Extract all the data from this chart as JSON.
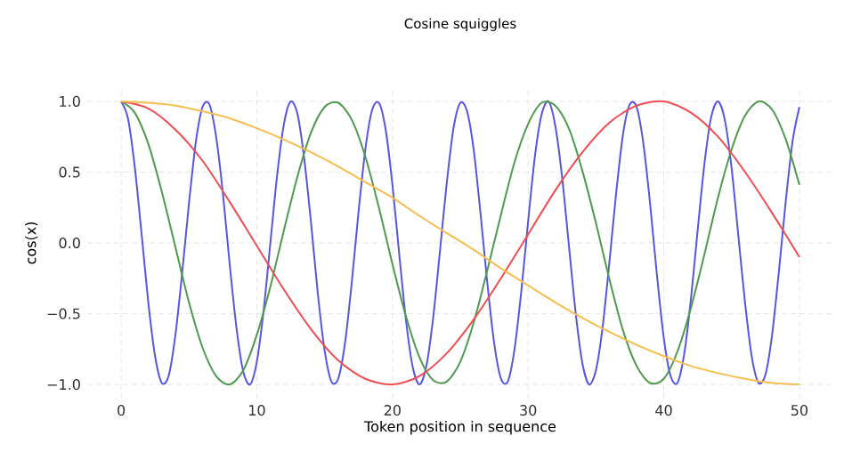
{
  "chart_data": {
    "type": "line",
    "title": "Cosine squiggles",
    "xlabel": "Token position in sequence",
    "ylabel": "cos(x)",
    "xlim": [
      -2.5,
      52.5
    ],
    "ylim": [
      -1.1,
      1.1
    ],
    "xticks": [
      0,
      10,
      20,
      30,
      40,
      50
    ],
    "yticks": [
      {
        "value": -1,
        "label": "−1.0"
      },
      {
        "value": -0.5,
        "label": "−0.5"
      },
      {
        "value": 0,
        "label": "0.0"
      },
      {
        "value": 0.5,
        "label": "0.5"
      },
      {
        "value": 1,
        "label": "1.0"
      }
    ],
    "grid": true,
    "series": [
      {
        "color": "#5656e0",
        "x": [
          0,
          0.5,
          1,
          1.5,
          2,
          2.5,
          3,
          3.5,
          4,
          4.5,
          5,
          5.5,
          6,
          6.5,
          7,
          7.5,
          8,
          8.5,
          9,
          9.5,
          10,
          10.5,
          11,
          11.5,
          12,
          12.5,
          13,
          13.5,
          14,
          14.5,
          15,
          15.5,
          16,
          16.5,
          17,
          17.5,
          18,
          18.5,
          19,
          19.5,
          20,
          20.5,
          21,
          21.5,
          22,
          22.5,
          23,
          23.5,
          24,
          24.5,
          25,
          25.5,
          26,
          26.5,
          27,
          27.5,
          28,
          28.5,
          29,
          29.5,
          30,
          30.5,
          31,
          31.5,
          32,
          32.5,
          33,
          33.5,
          34,
          34.5,
          35,
          35.5,
          36,
          36.5,
          37,
          37.5,
          38,
          38.5,
          39,
          39.5,
          40,
          40.5,
          41,
          41.5,
          42,
          42.5,
          43,
          43.5,
          44,
          44.5,
          45,
          45.5,
          46,
          46.5,
          47,
          47.5,
          48,
          48.5,
          49,
          49.5,
          50
        ],
        "values": [
          1.0,
          0.88,
          0.54,
          0.07,
          -0.42,
          -0.8,
          -0.99,
          -0.94,
          -0.65,
          -0.21,
          0.28,
          0.71,
          0.96,
          0.98,
          0.75,
          0.35,
          -0.15,
          -0.6,
          -0.91,
          -1.0,
          -0.84,
          -0.48,
          0.0,
          0.48,
          0.84,
          1.0,
          0.91,
          0.59,
          0.14,
          -0.36,
          -0.76,
          -0.98,
          -0.96,
          -0.71,
          -0.28,
          0.22,
          0.66,
          0.94,
          0.99,
          0.8,
          0.41,
          -0.08,
          -0.55,
          -0.88,
          -1.0,
          -0.87,
          -0.53,
          -0.06,
          0.42,
          0.81,
          0.99,
          0.93,
          0.65,
          0.2,
          -0.29,
          -0.71,
          -0.96,
          -0.98,
          -0.75,
          -0.34,
          0.15,
          0.61,
          0.91,
          1.0,
          0.83,
          0.47,
          -0.01,
          -0.49,
          -0.85,
          -1.0,
          -0.9,
          -0.59,
          -0.13,
          0.36,
          0.77,
          0.98,
          0.96,
          0.7,
          0.27,
          -0.23,
          -0.67,
          -0.94,
          -0.99,
          -0.79,
          -0.4,
          0.09,
          0.56,
          0.89,
          1.0,
          0.87,
          0.53,
          0.05,
          -0.43,
          -0.81,
          -0.99,
          -0.93,
          -0.64,
          -0.19,
          0.3,
          0.72,
          0.96
        ]
      },
      {
        "color": "#4e9a4e",
        "x": [
          0,
          1,
          2,
          3,
          4,
          5,
          6,
          7,
          8,
          9,
          10,
          11,
          12,
          13,
          14,
          15,
          16,
          17,
          18,
          19,
          20,
          21,
          22,
          23,
          24,
          25,
          26,
          27,
          28,
          29,
          30,
          31,
          32,
          33,
          34,
          35,
          36,
          37,
          38,
          39,
          40,
          41,
          42,
          43,
          44,
          45,
          46,
          47,
          48,
          49,
          50
        ],
        "values": [
          1.0,
          0.92,
          0.7,
          0.36,
          -0.03,
          -0.42,
          -0.74,
          -0.94,
          -1.0,
          -0.9,
          -0.65,
          -0.31,
          0.09,
          0.47,
          0.78,
          0.96,
          0.99,
          0.87,
          0.61,
          0.25,
          -0.15,
          -0.52,
          -0.81,
          -0.97,
          -0.98,
          -0.84,
          -0.56,
          -0.19,
          0.2,
          0.57,
          0.84,
          0.99,
          0.97,
          0.81,
          0.51,
          0.14,
          -0.26,
          -0.62,
          -0.87,
          -0.99,
          -0.96,
          -0.77,
          -0.46,
          -0.08,
          0.32,
          0.66,
          0.9,
          1.0,
          0.94,
          0.73,
          0.41
        ]
      },
      {
        "color": "#ee4e52",
        "x": [
          0,
          2,
          4,
          6,
          8,
          10,
          12,
          14,
          16,
          18,
          20,
          22,
          24,
          26,
          28,
          30,
          32,
          34,
          36,
          38,
          40,
          42,
          44,
          46,
          48,
          50
        ],
        "values": [
          1.0,
          0.95,
          0.8,
          0.58,
          0.29,
          -0.02,
          -0.33,
          -0.61,
          -0.83,
          -0.96,
          -1.0,
          -0.94,
          -0.78,
          -0.54,
          -0.25,
          0.06,
          0.37,
          0.64,
          0.85,
          0.97,
          1.0,
          0.92,
          0.75,
          0.5,
          0.21,
          -0.1
        ]
      },
      {
        "color": "#f7bd4f",
        "x": [
          0,
          2,
          4,
          6,
          8,
          10,
          12,
          14,
          16,
          18,
          20,
          22,
          24,
          26,
          28,
          30,
          32,
          34,
          36,
          38,
          40,
          42,
          44,
          46,
          48,
          50
        ],
        "values": [
          1.0,
          0.99,
          0.97,
          0.93,
          0.88,
          0.81,
          0.73,
          0.64,
          0.54,
          0.43,
          0.32,
          0.19,
          0.07,
          -0.05,
          -0.18,
          -0.3,
          -0.42,
          -0.53,
          -0.63,
          -0.72,
          -0.8,
          -0.87,
          -0.92,
          -0.96,
          -0.99,
          -1.0
        ]
      }
    ]
  }
}
